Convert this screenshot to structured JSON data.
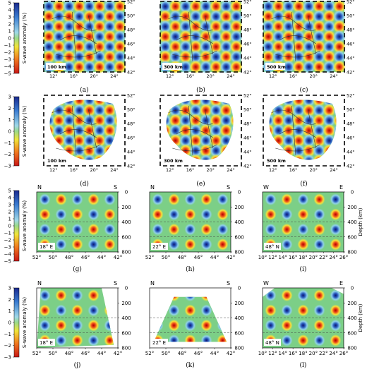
{
  "colorbar_label": "S-wave anomaly (%)",
  "colorbar_ticks_row1": [
    "5",
    "4",
    "3",
    "2",
    "1",
    "0",
    "−1",
    "−2",
    "−3",
    "−4",
    "−5"
  ],
  "colorbar_ticks_row2": [
    "3",
    "2",
    "1",
    "0",
    "−1",
    "−2",
    "−3"
  ],
  "colors": {
    "background": "#7ccf87",
    "positive_anomaly": "#1e2f9a",
    "negative_anomaly": "#d92020",
    "neutral": "#82cf8a"
  },
  "map_lat_ticks": [
    "52°",
    "50°",
    "48°",
    "46°",
    "44°",
    "42°"
  ],
  "map_lon_ticks": [
    "12°",
    "16°",
    "20°",
    "24°"
  ],
  "section_depth_label": "Depth (km)",
  "section_depth_ticks": [
    "0",
    "200",
    "400",
    "600",
    "800"
  ],
  "section_lat_ticks": [
    "52°",
    "50°",
    "48°",
    "46°",
    "44°",
    "42°"
  ],
  "section_lon_ticks": [
    "10°",
    "12°",
    "14°",
    "16°",
    "18°",
    "20°",
    "22°",
    "24°",
    "26°"
  ],
  "panels": {
    "a": {
      "caption": "(a)",
      "inset": "100 km"
    },
    "b": {
      "caption": "(b)",
      "inset": "300 km"
    },
    "c": {
      "caption": "(c)",
      "inset": "500 km"
    },
    "d": {
      "caption": "(d)",
      "inset": "100 km"
    },
    "e": {
      "caption": "(e)",
      "inset": "300 km"
    },
    "f": {
      "caption": "(f)",
      "inset": "500 km"
    },
    "g": {
      "caption": "(g)",
      "left": "N",
      "right": "S",
      "inset": "18° E"
    },
    "h": {
      "caption": "(h)",
      "left": "N",
      "right": "S",
      "inset": "22° E"
    },
    "i": {
      "caption": "(i)",
      "left": "W",
      "right": "E",
      "inset": "48° N"
    },
    "j": {
      "caption": "(j)",
      "left": "N",
      "right": "S",
      "inset": "18° E"
    },
    "k": {
      "caption": "(k)",
      "left": "N",
      "right": "S",
      "inset": "22° E"
    },
    "l": {
      "caption": "(l)",
      "left": "W",
      "right": "E",
      "inset": "48° N"
    }
  }
}
